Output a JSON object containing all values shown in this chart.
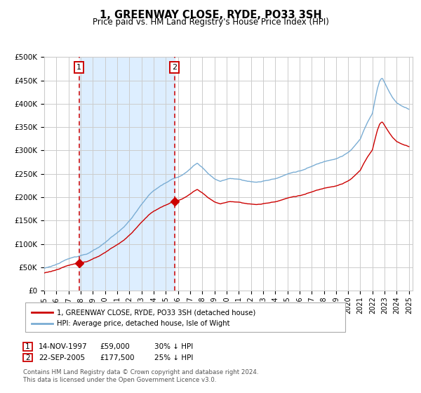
{
  "title": "1, GREENWAY CLOSE, RYDE, PO33 3SH",
  "subtitle": "Price paid vs. HM Land Registry's House Price Index (HPI)",
  "legend_line1": "1, GREENWAY CLOSE, RYDE, PO33 3SH (detached house)",
  "legend_line2": "HPI: Average price, detached house, Isle of Wight",
  "annotation1_date": "14-NOV-1997",
  "annotation1_price": "£59,000",
  "annotation1_hpi": "30% ↓ HPI",
  "annotation2_date": "22-SEP-2005",
  "annotation2_price": "£177,500",
  "annotation2_hpi": "25% ↓ HPI",
  "footer": "Contains HM Land Registry data © Crown copyright and database right 2024.\nThis data is licensed under the Open Government Licence v3.0.",
  "purchase1_year": 1997.87,
  "purchase1_price": 59000,
  "purchase2_year": 2005.72,
  "purchase2_price": 177500,
  "hpi_color": "#7aadd4",
  "price_color": "#cc0000",
  "marker_color": "#cc0000",
  "shade_color": "#ddeeff",
  "vline_color": "#cc0000",
  "grid_color": "#cccccc",
  "bg_color": "#ffffff",
  "ylim_max": 500000,
  "ylim_min": 0,
  "hpi_anchors_years": [
    1995.0,
    1995.5,
    1996.0,
    1996.5,
    1997.0,
    1997.5,
    1998.0,
    1998.5,
    1999.0,
    1999.5,
    2000.0,
    2000.5,
    2001.0,
    2001.5,
    2002.0,
    2002.5,
    2003.0,
    2003.5,
    2004.0,
    2004.5,
    2005.0,
    2005.5,
    2006.0,
    2006.5,
    2007.0,
    2007.3,
    2007.6,
    2008.0,
    2008.5,
    2009.0,
    2009.5,
    2010.0,
    2010.5,
    2011.0,
    2011.5,
    2012.0,
    2012.5,
    2013.0,
    2013.5,
    2014.0,
    2014.5,
    2015.0,
    2015.5,
    2016.0,
    2016.5,
    2017.0,
    2017.5,
    2018.0,
    2018.5,
    2019.0,
    2019.5,
    2020.0,
    2020.3,
    2020.6,
    2021.0,
    2021.3,
    2021.6,
    2022.0,
    2022.2,
    2022.4,
    2022.6,
    2022.8,
    2023.0,
    2023.3,
    2023.6,
    2024.0,
    2024.3,
    2024.6,
    2025.0
  ],
  "hpi_anchors_vals": [
    48000,
    52000,
    57000,
    62000,
    67000,
    72000,
    76000,
    80000,
    86000,
    93000,
    101000,
    112000,
    122000,
    134000,
    148000,
    165000,
    183000,
    200000,
    213000,
    222000,
    230000,
    237000,
    242000,
    248000,
    258000,
    265000,
    270000,
    262000,
    248000,
    237000,
    232000,
    236000,
    238000,
    237000,
    235000,
    232000,
    231000,
    233000,
    236000,
    240000,
    245000,
    250000,
    254000,
    257000,
    261000,
    266000,
    271000,
    276000,
    281000,
    285000,
    291000,
    298000,
    305000,
    314000,
    326000,
    345000,
    362000,
    382000,
    410000,
    435000,
    452000,
    458000,
    448000,
    432000,
    418000,
    405000,
    400000,
    397000,
    393000
  ]
}
